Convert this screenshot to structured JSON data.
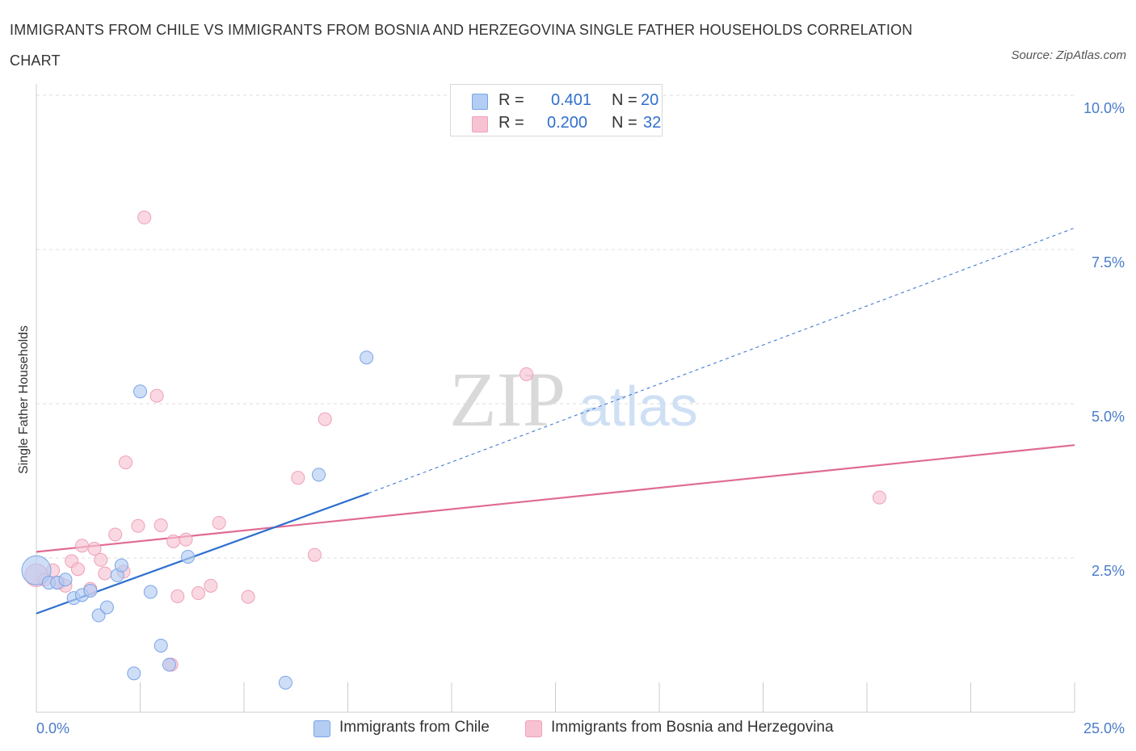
{
  "header": {
    "title": "IMMIGRANTS FROM CHILE VS IMMIGRANTS FROM BOSNIA AND HERZEGOVINA SINGLE FATHER HOUSEHOLDS CORRELATION CHART",
    "source": "Source: ZipAtlas.com"
  },
  "watermark": {
    "zip": "ZIP",
    "atlas": "atlas"
  },
  "legend": {
    "r_label": "R =",
    "n_label": "N =",
    "chile": {
      "r": "0.401",
      "n": "20"
    },
    "bosnia": {
      "r": "0.200",
      "n": "32"
    }
  },
  "colors": {
    "chile_fill": "#b3cdf3",
    "chile_stroke": "#7aa4e6",
    "chile_line": "#2f6fcf",
    "bosnia_fill": "#f7c3d3",
    "bosnia_stroke": "#eea0b7",
    "bosnia_line": "#e06a93",
    "tick_text": "#4a7cc9",
    "grid": "#dcdcdc"
  },
  "chart_data": {
    "type": "scatter",
    "title": "IMMIGRANTS FROM CHILE VS IMMIGRANTS FROM BOSNIA AND HERZEGOVINA SINGLE FATHER HOUSEHOLDS CORRELATION CHART",
    "xlabel": "",
    "ylabel": "Single Father Households",
    "xlim": [
      0,
      25
    ],
    "ylim": [
      0,
      10
    ],
    "x_tick_labels": [
      "0.0%",
      "25.0%"
    ],
    "y_ticks": [
      2.5,
      5.0,
      7.5,
      10.0
    ],
    "y_tick_labels": [
      "2.5%",
      "5.0%",
      "7.5%",
      "10.0%"
    ],
    "grid": true,
    "legend_position": "top-center",
    "series": [
      {
        "name": "Immigrants from Chile",
        "points": [
          [
            0.0,
            2.3
          ],
          [
            0.3,
            2.1
          ],
          [
            0.5,
            2.1
          ],
          [
            0.7,
            2.15
          ],
          [
            0.9,
            1.85
          ],
          [
            1.1,
            1.9
          ],
          [
            1.3,
            1.97
          ],
          [
            1.5,
            1.57
          ],
          [
            1.7,
            1.7
          ],
          [
            1.95,
            2.22
          ],
          [
            2.05,
            2.38
          ],
          [
            2.35,
            0.63
          ],
          [
            2.5,
            5.2
          ],
          [
            2.75,
            1.95
          ],
          [
            3.0,
            1.08
          ],
          [
            3.2,
            0.77
          ],
          [
            3.65,
            2.52
          ],
          [
            6.0,
            0.48
          ],
          [
            6.8,
            3.85
          ],
          [
            7.95,
            5.75
          ]
        ],
        "trend": {
          "x": [
            0.0,
            8.0
          ],
          "y": [
            1.6,
            3.55
          ]
        },
        "trend_dashed": {
          "x": [
            8.0,
            25.0
          ],
          "y": [
            3.55,
            7.85
          ]
        }
      },
      {
        "name": "Immigrants from Bosnia and Herzegovina",
        "points": [
          [
            0.0,
            2.22
          ],
          [
            0.2,
            2.15
          ],
          [
            0.4,
            2.3
          ],
          [
            0.55,
            2.1
          ],
          [
            0.7,
            2.05
          ],
          [
            0.85,
            2.45
          ],
          [
            1.0,
            2.32
          ],
          [
            1.1,
            2.7
          ],
          [
            1.3,
            2.0
          ],
          [
            1.4,
            2.65
          ],
          [
            1.55,
            2.47
          ],
          [
            1.65,
            2.25
          ],
          [
            1.9,
            2.88
          ],
          [
            2.1,
            2.28
          ],
          [
            2.15,
            4.05
          ],
          [
            2.45,
            3.02
          ],
          [
            2.6,
            8.02
          ],
          [
            2.9,
            5.13
          ],
          [
            3.0,
            3.03
          ],
          [
            3.25,
            0.77
          ],
          [
            3.3,
            2.77
          ],
          [
            3.4,
            1.88
          ],
          [
            3.6,
            2.8
          ],
          [
            3.9,
            1.93
          ],
          [
            4.2,
            2.05
          ],
          [
            4.4,
            3.07
          ],
          [
            5.1,
            1.87
          ],
          [
            6.3,
            3.8
          ],
          [
            6.7,
            2.55
          ],
          [
            6.95,
            4.75
          ],
          [
            11.8,
            5.48
          ],
          [
            20.3,
            3.48
          ]
        ],
        "trend": {
          "x": [
            0.0,
            25.0
          ],
          "y": [
            2.6,
            4.33
          ]
        }
      }
    ]
  },
  "bottom_legend": {
    "chile_label": "Immigrants from Chile",
    "bosnia_label": "Immigrants from Bosnia and Herzegovina"
  }
}
